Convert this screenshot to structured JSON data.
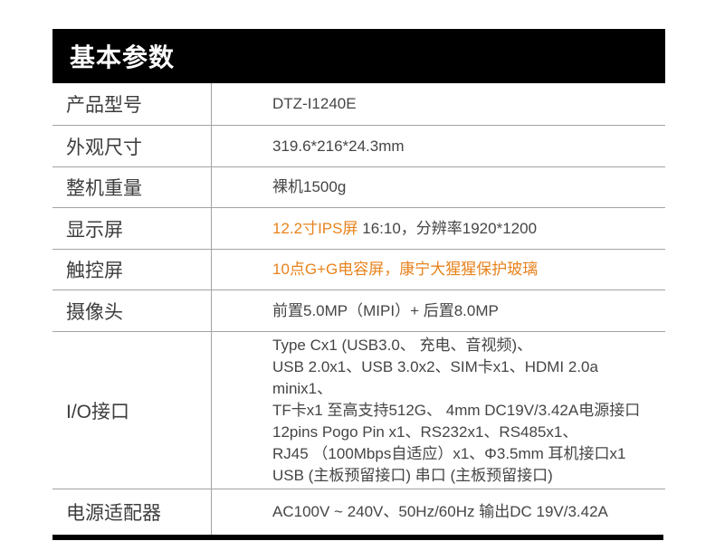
{
  "colors": {
    "accent_orange": "#e8821c",
    "bar_black": "#000000",
    "grid_line": "#a3a3a3",
    "label_text": "#3d3d3d",
    "value_text": "#454545"
  },
  "header": {
    "title": "基本参数"
  },
  "table": {
    "rows": [
      {
        "label": "产品型号",
        "value": "DTZ-I1240E"
      },
      {
        "label": "外观尺寸",
        "value": "319.6*216*24.3mm"
      },
      {
        "label": "整机重量",
        "value": "裸机1500g"
      },
      {
        "label": "显示屏",
        "value_highlight": "12.2寸IPS屏",
        "value_rest": " 16:10，分辨率1920*1200"
      },
      {
        "label": "触控屏",
        "value_highlight": "10点G+G电容屏，康宁大猩猩保护玻璃"
      },
      {
        "label": "摄像头",
        "value": "前置5.0MP（MIPI）+ 后置8.0MP"
      },
      {
        "label": "I/O接口",
        "lines": [
          "Type Cx1 (USB3.0、 充电、音视频)、",
          "USB 2.0x1、USB 3.0x2、SIM卡x1、HDMI 2.0a minix1、",
          "TF卡x1 至高支持512G、 4mm DC19V/3.42A电源接口",
          "12pins Pogo Pin x1、RS232x1、RS485x1、",
          "RJ45 （100Mbps自适应）x1、Φ3.5mm 耳机接口x1",
          "USB (主板预留接口) 串口 (主板预留接口)"
        ]
      },
      {
        "label": "电源适配器",
        "value": "AC100V ~ 240V、50Hz/60Hz 输出DC 19V/3.42A"
      }
    ]
  }
}
